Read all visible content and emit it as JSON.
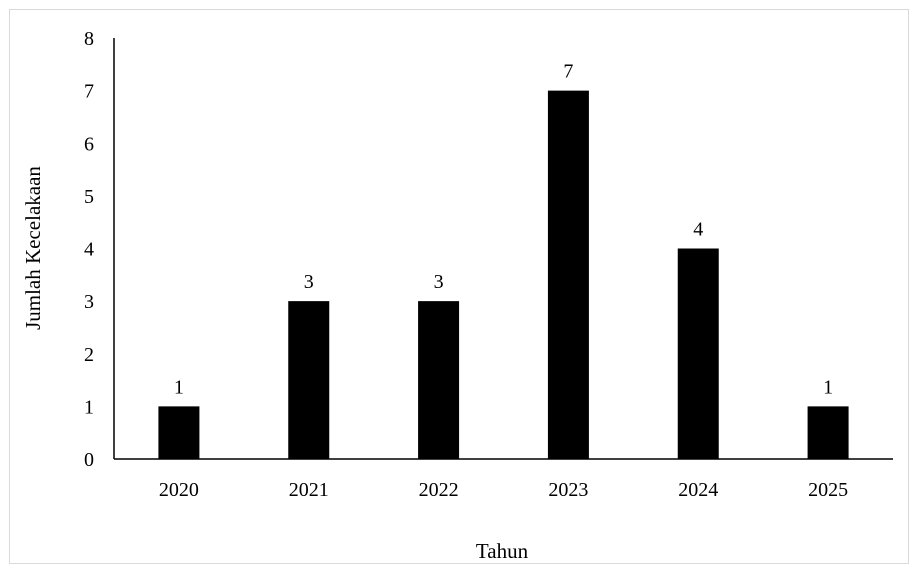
{
  "chart_data": {
    "type": "bar",
    "categories": [
      "2020",
      "2021",
      "2022",
      "2023",
      "2024",
      "2025"
    ],
    "values": [
      1,
      3,
      3,
      7,
      4,
      1
    ],
    "title": "",
    "xlabel": "Tahun",
    "ylabel": "Jumlah Kecelakaan",
    "ylim": [
      0,
      8
    ],
    "yticks": [
      "0",
      "1",
      "2",
      "3",
      "4",
      "5",
      "6",
      "7",
      "8"
    ],
    "data_labels": [
      "1",
      "3",
      "3",
      "7",
      "4",
      "1"
    ],
    "grid": false,
    "legend": "none",
    "bar_color": "#000000",
    "axis_color": "#000000",
    "frame_color": "#d9d9d9"
  }
}
